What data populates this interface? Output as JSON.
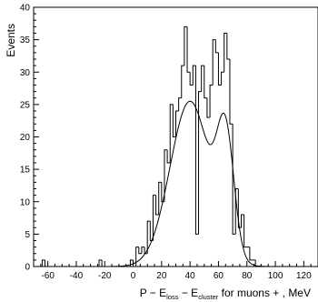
{
  "chart_data": {
    "type": "histogram",
    "title": "",
    "ylabel": "Events",
    "xlabel_parts": {
      "prefix": "P − E",
      "sub1": "loss",
      "mid": " − E",
      "sub2": "cluster",
      "suffix": " for muons + , MeV"
    },
    "xlim": [
      -70,
      130
    ],
    "ylim": [
      0,
      40
    ],
    "xticks": [
      -60,
      -40,
      -20,
      0,
      20,
      40,
      60,
      80,
      100,
      120
    ],
    "yticks": [
      0,
      5,
      10,
      15,
      20,
      25,
      30,
      35,
      40
    ],
    "bin_width": 2,
    "bins": [
      {
        "x": -70,
        "y": 0
      },
      {
        "x": -68,
        "y": 0
      },
      {
        "x": -66,
        "y": 0
      },
      {
        "x": -64,
        "y": 1
      },
      {
        "x": -62,
        "y": 0
      },
      {
        "x": -60,
        "y": 0
      },
      {
        "x": -58,
        "y": 0
      },
      {
        "x": -56,
        "y": 0
      },
      {
        "x": -54,
        "y": 0
      },
      {
        "x": -52,
        "y": 0
      },
      {
        "x": -50,
        "y": 0
      },
      {
        "x": -48,
        "y": 0
      },
      {
        "x": -46,
        "y": 0
      },
      {
        "x": -44,
        "y": 0
      },
      {
        "x": -42,
        "y": 0
      },
      {
        "x": -40,
        "y": 0
      },
      {
        "x": -38,
        "y": 0
      },
      {
        "x": -36,
        "y": 0
      },
      {
        "x": -34,
        "y": 0
      },
      {
        "x": -32,
        "y": 0
      },
      {
        "x": -30,
        "y": 0
      },
      {
        "x": -28,
        "y": 0
      },
      {
        "x": -26,
        "y": 0
      },
      {
        "x": -24,
        "y": 1
      },
      {
        "x": -22,
        "y": 0
      },
      {
        "x": -20,
        "y": 0
      },
      {
        "x": -18,
        "y": 0
      },
      {
        "x": -16,
        "y": 0
      },
      {
        "x": -14,
        "y": 0
      },
      {
        "x": -12,
        "y": 0
      },
      {
        "x": -10,
        "y": 0
      },
      {
        "x": -8,
        "y": 0
      },
      {
        "x": -6,
        "y": 0
      },
      {
        "x": -4,
        "y": 0
      },
      {
        "x": -2,
        "y": 1
      },
      {
        "x": 0,
        "y": 0
      },
      {
        "x": 2,
        "y": 3
      },
      {
        "x": 4,
        "y": 2
      },
      {
        "x": 6,
        "y": 3
      },
      {
        "x": 8,
        "y": 2
      },
      {
        "x": 10,
        "y": 7
      },
      {
        "x": 12,
        "y": 4
      },
      {
        "x": 14,
        "y": 11
      },
      {
        "x": 16,
        "y": 8
      },
      {
        "x": 18,
        "y": 13
      },
      {
        "x": 20,
        "y": 10
      },
      {
        "x": 22,
        "y": 18
      },
      {
        "x": 24,
        "y": 16
      },
      {
        "x": 26,
        "y": 25
      },
      {
        "x": 28,
        "y": 20
      },
      {
        "x": 30,
        "y": 24
      },
      {
        "x": 32,
        "y": 26
      },
      {
        "x": 34,
        "y": 31
      },
      {
        "x": 36,
        "y": 37
      },
      {
        "x": 38,
        "y": 30
      },
      {
        "x": 40,
        "y": 28
      },
      {
        "x": 42,
        "y": 31
      },
      {
        "x": 44,
        "y": 5
      },
      {
        "x": 46,
        "y": 27
      },
      {
        "x": 48,
        "y": 31
      },
      {
        "x": 50,
        "y": 26
      },
      {
        "x": 52,
        "y": 23
      },
      {
        "x": 54,
        "y": 28
      },
      {
        "x": 56,
        "y": 35
      },
      {
        "x": 58,
        "y": 33
      },
      {
        "x": 60,
        "y": 28
      },
      {
        "x": 62,
        "y": 30
      },
      {
        "x": 64,
        "y": 36
      },
      {
        "x": 66,
        "y": 32
      },
      {
        "x": 68,
        "y": 22
      },
      {
        "x": 70,
        "y": 5
      },
      {
        "x": 72,
        "y": 12
      },
      {
        "x": 74,
        "y": 6
      },
      {
        "x": 76,
        "y": 8
      },
      {
        "x": 78,
        "y": 3
      },
      {
        "x": 80,
        "y": 3
      },
      {
        "x": 82,
        "y": 1
      },
      {
        "x": 84,
        "y": 1
      },
      {
        "x": 86,
        "y": 0
      },
      {
        "x": 88,
        "y": 0
      },
      {
        "x": 90,
        "y": 0
      },
      {
        "x": 92,
        "y": 0
      },
      {
        "x": 94,
        "y": 0
      },
      {
        "x": 96,
        "y": 0
      },
      {
        "x": 98,
        "y": 0
      },
      {
        "x": 100,
        "y": 0
      },
      {
        "x": 102,
        "y": 0
      },
      {
        "x": 104,
        "y": 0
      },
      {
        "x": 106,
        "y": 0
      },
      {
        "x": 108,
        "y": 0
      },
      {
        "x": 110,
        "y": 0
      },
      {
        "x": 112,
        "y": 0
      },
      {
        "x": 114,
        "y": 0
      },
      {
        "x": 116,
        "y": 0
      },
      {
        "x": 118,
        "y": 0
      },
      {
        "x": 120,
        "y": 0
      },
      {
        "x": 122,
        "y": 0
      },
      {
        "x": 124,
        "y": 0
      },
      {
        "x": 126,
        "y": 0
      },
      {
        "x": 128,
        "y": 0
      }
    ],
    "fit_curve": {
      "type": "sum_of_gaussians",
      "components": [
        {
          "amplitude": 25.5,
          "mean": 40,
          "sigma": 14
        },
        {
          "amplitude": 18.0,
          "mean": 65,
          "sigma": 6
        }
      ]
    },
    "grid": false,
    "legend": "none"
  }
}
